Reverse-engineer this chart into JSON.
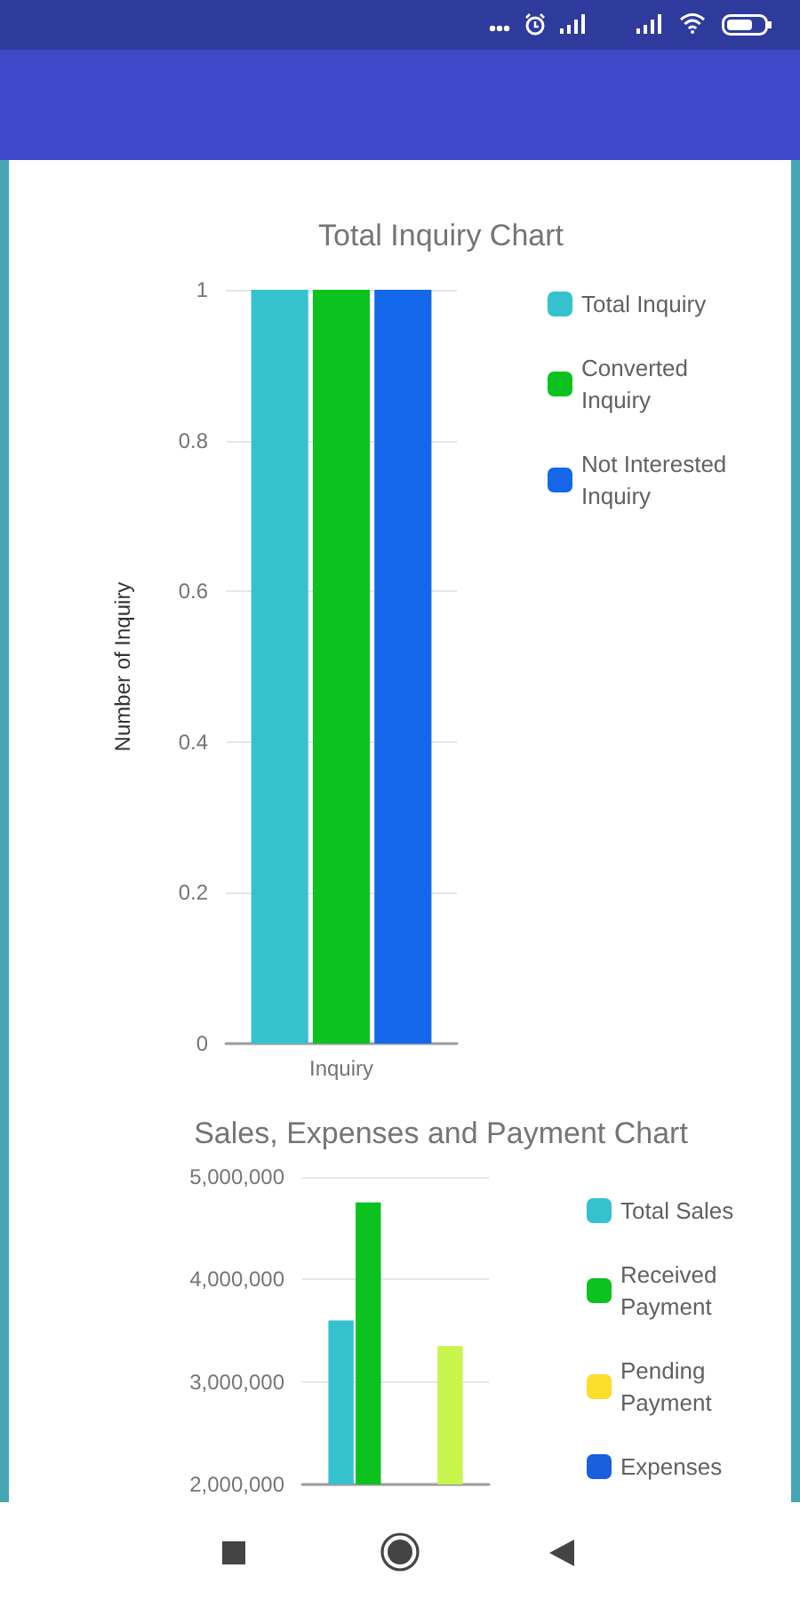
{
  "chart_data": [
    {
      "type": "bar",
      "title": "Total Inquiry Chart",
      "ylabel": "Number of Inquiry",
      "categories": [
        "Inquiry"
      ],
      "series": [
        {
          "name": "Total Inquiry",
          "color": "#36c1cf",
          "values": [
            1
          ]
        },
        {
          "name": "Converted Inquiry",
          "color": "#0cc21f",
          "values": [
            1
          ]
        },
        {
          "name": "Not Interested Inquiry",
          "color": "#1467eb",
          "values": [
            1
          ]
        }
      ],
      "ylim": [
        0,
        1
      ],
      "yticks": [
        0,
        0.2,
        0.4,
        0.6,
        0.8,
        1
      ],
      "grid": "y",
      "legend": "right"
    },
    {
      "type": "bar",
      "title": "Sales, Expenses and Payment Chart",
      "categories": [
        null
      ],
      "series": [
        {
          "name": "Total Sales",
          "color": "#36c1cf",
          "values": [
            3600000
          ]
        },
        {
          "name": "Received Payment",
          "color": "#0cc21f",
          "values": [
            4750000
          ]
        },
        {
          "name": "Pending Payment",
          "color": "#fbdd2c",
          "values": [
            null
          ]
        },
        {
          "name": "Expenses",
          "color": "#1a5fdc",
          "values": [
            null
          ]
        },
        {
          "color": "#c8f54c",
          "values": [
            3350000
          ]
        }
      ],
      "ylim": [
        2000000,
        5000000
      ],
      "yticks": [
        {
          "value": 2000000,
          "label": "2,000,000"
        },
        {
          "value": 3000000,
          "label": "3,000,000"
        },
        {
          "value": 4000000,
          "label": "4,000,000"
        },
        {
          "value": 5000000,
          "label": "5,000,000"
        }
      ],
      "grid": "y",
      "legend": "right"
    }
  ]
}
